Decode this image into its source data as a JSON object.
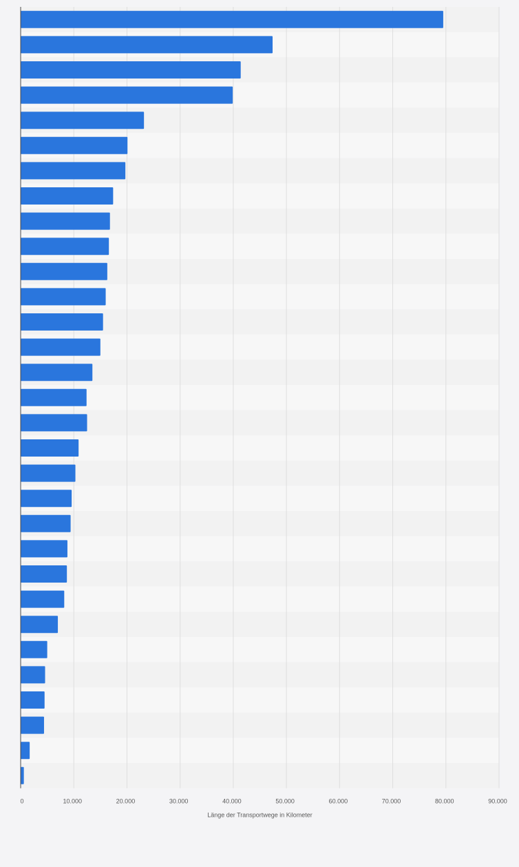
{
  "colors": {
    "bar": "#2a76dd",
    "background": "#f4f4f6",
    "band_light": "#f7f7f7",
    "band_dark": "#f2f2f2",
    "gridline": "#dedede",
    "axis": "#4a4a4a"
  },
  "chart_data": {
    "type": "bar",
    "orientation": "horizontal",
    "title": "",
    "xlabel": "Länge der Transportwege in Kilometer",
    "ylabel": "",
    "xlim": [
      0,
      90000
    ],
    "xticks": [
      0,
      10000,
      20000,
      30000,
      40000,
      50000,
      60000,
      70000,
      80000,
      90000
    ],
    "xtick_labels": [
      "0",
      "10.000",
      "20.000",
      "30.000",
      "40.000",
      "50.000",
      "60.000",
      "70.000",
      "80.000",
      "90.000"
    ],
    "grid": true,
    "legend": "none",
    "category_labels_visible": false,
    "values": [
      79500,
      47400,
      41400,
      39900,
      23200,
      20100,
      19700,
      17400,
      16800,
      16600,
      16300,
      16000,
      15500,
      15000,
      13500,
      12400,
      12500,
      10900,
      10300,
      9600,
      9400,
      8800,
      8700,
      8200,
      7000,
      5000,
      4600,
      4500,
      4400,
      1700,
      600
    ]
  }
}
